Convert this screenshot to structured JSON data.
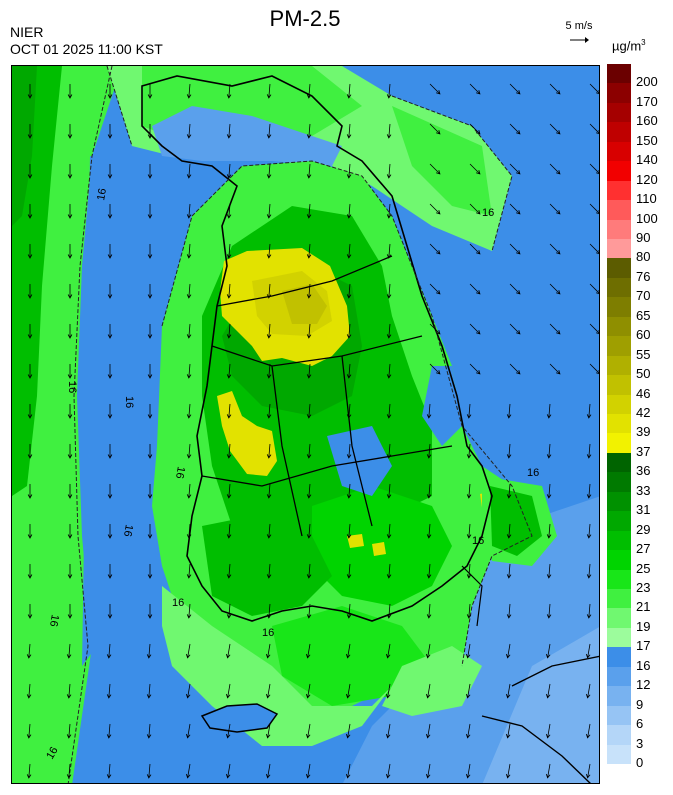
{
  "header": {
    "title": "PM-2.5",
    "org": "NIER",
    "timestamp": "OCT 01 2025 11:00 KST",
    "wind_reference": "5 m/s",
    "unit_main": "µg/m",
    "unit_exp": "3"
  },
  "colorbar": {
    "levels": [
      {
        "label": "200",
        "color": "#6b0000"
      },
      {
        "label": "170",
        "color": "#8c0000"
      },
      {
        "label": "160",
        "color": "#a50000"
      },
      {
        "label": "150",
        "color": "#bf0000"
      },
      {
        "label": "140",
        "color": "#d80000"
      },
      {
        "label": "120",
        "color": "#f20000"
      },
      {
        "label": "110",
        "color": "#ff3030"
      },
      {
        "label": "100",
        "color": "#ff5a5a"
      },
      {
        "label": "90",
        "color": "#ff7b7b"
      },
      {
        "label": "80",
        "color": "#ff9a9a"
      },
      {
        "label": "76",
        "color": "#5c5c00"
      },
      {
        "label": "70",
        "color": "#6e6e00"
      },
      {
        "label": "65",
        "color": "#7e7e00"
      },
      {
        "label": "60",
        "color": "#8f8f00"
      },
      {
        "label": "55",
        "color": "#9f9f00"
      },
      {
        "label": "50",
        "color": "#b0b000"
      },
      {
        "label": "46",
        "color": "#c1c100"
      },
      {
        "label": "42",
        "color": "#d2d200"
      },
      {
        "label": "39",
        "color": "#e2e200"
      },
      {
        "label": "37",
        "color": "#f2f200"
      },
      {
        "label": "36",
        "color": "#006400"
      },
      {
        "label": "33",
        "color": "#007a00"
      },
      {
        "label": "31",
        "color": "#009100"
      },
      {
        "label": "29",
        "color": "#00a800"
      },
      {
        "label": "27",
        "color": "#00be00"
      },
      {
        "label": "25",
        "color": "#00d400"
      },
      {
        "label": "23",
        "color": "#18e618"
      },
      {
        "label": "21",
        "color": "#40f040"
      },
      {
        "label": "19",
        "color": "#70f870"
      },
      {
        "label": "17",
        "color": "#9cfc9c"
      },
      {
        "label": "16",
        "color": "#3c8ee8"
      },
      {
        "label": "12",
        "color": "#5aa0ec"
      },
      {
        "label": "9",
        "color": "#78b2f0"
      },
      {
        "label": "6",
        "color": "#96c4f4"
      },
      {
        "label": "3",
        "color": "#b4d6f8"
      },
      {
        "label": "0",
        "color": "#c8e2fa"
      }
    ]
  },
  "map": {
    "contour_labels": [
      "16",
      "16",
      "16",
      "16",
      "16",
      "16",
      "16",
      "16",
      "16",
      "16",
      "16",
      "16"
    ]
  }
}
